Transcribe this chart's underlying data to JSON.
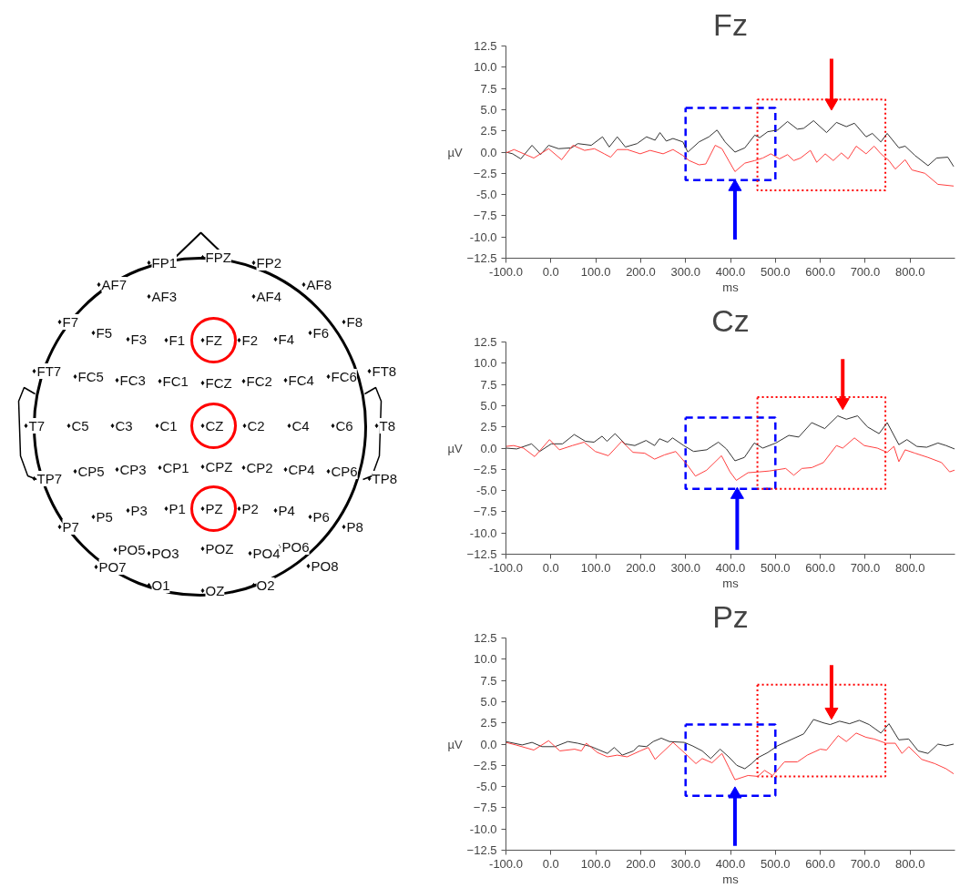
{
  "chart_data": [
    {
      "type": "other",
      "annotations": [
        "FP1",
        "FPZ",
        "FP2",
        "AF7",
        "AF3",
        "AF4",
        "AF8",
        "F7",
        "F5",
        "F3",
        "F1",
        "FZ",
        "F2",
        "F4",
        "F6",
        "F8",
        "FT7",
        "FC5",
        "FC3",
        "FC1",
        "FCZ",
        "FC2",
        "FC4",
        "FC6",
        "FT8",
        "T7",
        "C5",
        "C3",
        "C1",
        "CZ",
        "C2",
        "C4",
        "C6",
        "T8",
        "TP7",
        "CP5",
        "CP3",
        "CP1",
        "CPZ",
        "CP2",
        "CP4",
        "CP6",
        "TP8",
        "P7",
        "P5",
        "P3",
        "P1",
        "PZ",
        "P2",
        "P4",
        "P6",
        "P8",
        "PO7",
        "PO5",
        "PO3",
        "POZ",
        "PO4",
        "PO6",
        "PO8",
        "O1",
        "OZ",
        "O2"
      ]
    },
    {
      "type": "line",
      "title": "Fz",
      "xlabel": "ms",
      "ylabel": "µV",
      "grid": false,
      "xlim": [
        -100,
        900
      ],
      "ylim": [
        -12.5,
        12.5
      ],
      "xticks": [
        {
          "value": -100,
          "label": "-100.0"
        },
        {
          "value": 0,
          "label": "0.0"
        },
        {
          "value": 100,
          "label": "100.0"
        },
        {
          "value": 200,
          "label": "200.0"
        },
        {
          "value": 300,
          "label": "300.0"
        },
        {
          "value": 400,
          "label": "400.0"
        },
        {
          "value": 500,
          "label": "500.0"
        },
        {
          "value": 600,
          "label": "600.0"
        },
        {
          "value": 700,
          "label": "700.0"
        },
        {
          "value": 800,
          "label": "800.0"
        }
      ],
      "yticks": [
        12.5,
        {
          "value": 10,
          "label": "10.0"
        },
        7.5,
        {
          "value": 5,
          "label": "5.0"
        },
        2.5,
        {
          "value": 0,
          "label": "0.0"
        },
        -2.5,
        {
          "value": -5,
          "label": "-5.0"
        },
        -7.5,
        {
          "value": -10,
          "label": "-10.0"
        },
        -12.5
      ],
      "series": [
        {
          "color": "#333333",
          "x": [
            -100,
            -85,
            -67,
            -42,
            -23,
            -5,
            17,
            46,
            60,
            90,
            115,
            130,
            148,
            166,
            192,
            213,
            232,
            243,
            257,
            272,
            294,
            305,
            330,
            352,
            370,
            388,
            410,
            432,
            454,
            465,
            483,
            505,
            527,
            549,
            563,
            585,
            614,
            636,
            658,
            676,
            702,
            716,
            735,
            749,
            775,
            789,
            811,
            840,
            859,
            884,
            897
          ],
          "values": [
            0.0,
            -0.2,
            -0.8,
            0.8,
            -0.3,
            0.8,
            0.4,
            0.5,
            1.0,
            0.8,
            1.8,
            0.6,
            1.8,
            0.6,
            1.0,
            1.8,
            1.4,
            2.3,
            1.3,
            1.6,
            1.2,
            0.0,
            1.2,
            1.8,
            2.6,
            1.2,
            0.0,
            0.5,
            2.0,
            1.7,
            2.4,
            2.6,
            3.6,
            2.7,
            2.8,
            3.7,
            2.3,
            3.5,
            3.0,
            3.4,
            1.8,
            2.2,
            1.2,
            2.2,
            0.5,
            0.7,
            -0.4,
            -1.6,
            -0.7,
            -0.6,
            -1.7
          ]
        },
        {
          "color": "#ff4040",
          "x": [
            -100,
            -82,
            -56,
            -38,
            -5,
            24,
            49,
            75,
            97,
            119,
            133,
            148,
            170,
            199,
            221,
            250,
            272,
            294,
            308,
            330,
            345,
            366,
            381,
            396,
            410,
            432,
            454,
            472,
            490,
            509,
            527,
            541,
            556,
            578,
            592,
            611,
            629,
            647,
            662,
            680,
            702,
            720,
            735,
            753,
            767,
            789,
            804,
            833,
            862,
            897
          ],
          "values": [
            -0.1,
            0.3,
            -0.3,
            -0.7,
            0.4,
            -0.9,
            0.8,
            0.2,
            0.4,
            -0.2,
            -0.6,
            0.3,
            0.3,
            -0.2,
            0.2,
            -0.2,
            0.3,
            -0.4,
            -1.0,
            -1.5,
            -1.4,
            0.8,
            0.4,
            -1.0,
            -2.3,
            -1.3,
            -1.0,
            -0.7,
            -0.2,
            -0.8,
            -0.3,
            -1.0,
            -0.7,
            0.2,
            -1.2,
            -0.2,
            -1.0,
            -0.1,
            -0.8,
            0.7,
            -0.2,
            0.7,
            -0.2,
            -1.0,
            -2.0,
            -0.9,
            -2.1,
            -2.5,
            -3.8,
            -4.0
          ]
        }
      ]
    },
    {
      "type": "line",
      "title": "Cz",
      "xlabel": "ms",
      "ylabel": "µV",
      "grid": false,
      "xlim": [
        -100,
        900
      ],
      "ylim": [
        -12.5,
        12.5
      ],
      "xticks": [
        {
          "value": -100,
          "label": "-100.0"
        },
        {
          "value": 0,
          "label": "0.0"
        },
        {
          "value": 100,
          "label": "100.0"
        },
        {
          "value": 200,
          "label": "200.0"
        },
        {
          "value": 300,
          "label": "300.0"
        },
        {
          "value": 400,
          "label": "400.0"
        },
        {
          "value": 500,
          "label": "500.0"
        },
        {
          "value": 600,
          "label": "600.0"
        },
        {
          "value": 700,
          "label": "700.0"
        },
        {
          "value": 800,
          "label": "800.0"
        }
      ],
      "yticks": [
        12.5,
        {
          "value": 10,
          "label": "10.0"
        },
        7.5,
        {
          "value": 5,
          "label": "5.0"
        },
        2.5,
        {
          "value": 0,
          "label": "0.0"
        },
        -2.5,
        {
          "value": -5,
          "label": "-5.0"
        },
        -7.5,
        {
          "value": -10,
          "label": "-10.0"
        },
        -12.5
      ],
      "series": [
        {
          "color": "#333333",
          "x": [
            -100,
            -76,
            -43,
            -25,
            1,
            26,
            52,
            77,
            96,
            114,
            125,
            143,
            165,
            187,
            212,
            231,
            242,
            260,
            271,
            296,
            318,
            347,
            373,
            391,
            410,
            431,
            453,
            472,
            501,
            530,
            552,
            581,
            610,
            639,
            658,
            683,
            705,
            731,
            749,
            775,
            793,
            815,
            837,
            862,
            880,
            899
          ],
          "values": [
            0.0,
            -0.1,
            0.5,
            -0.4,
            0.5,
            0.5,
            1.6,
            0.8,
            0.7,
            1.4,
            0.8,
            1.7,
            0.5,
            0.3,
            0.9,
            0.3,
            1.1,
            0.7,
            1.2,
            0.3,
            -0.4,
            -0.2,
            0.7,
            -0.1,
            -1.5,
            -1.1,
            0.6,
            0.0,
            0.6,
            1.5,
            1.3,
            3.0,
            2.3,
            3.8,
            3.4,
            3.8,
            2.5,
            1.7,
            3.0,
            0.4,
            1.0,
            0.2,
            0.1,
            0.6,
            0.3,
            -0.1
          ]
        },
        {
          "color": "#ff4040",
          "x": [
            -100,
            -83,
            -61,
            -36,
            -3,
            19,
            48,
            74,
            99,
            128,
            158,
            183,
            209,
            231,
            253,
            278,
            304,
            322,
            347,
            380,
            399,
            413,
            439,
            464,
            486,
            523,
            541,
            559,
            581,
            607,
            636,
            650,
            676,
            698,
            727,
            749,
            764,
            775,
            789,
            811,
            840,
            870,
            888,
            899
          ],
          "values": [
            0.2,
            0.3,
            0.0,
            -1.0,
            1.0,
            -0.2,
            0.3,
            0.7,
            -0.4,
            -0.9,
            0.8,
            -0.5,
            -0.6,
            -1.3,
            -0.8,
            -0.4,
            -2.0,
            -3.3,
            -2.6,
            -0.9,
            -2.8,
            -3.8,
            -2.9,
            -2.8,
            -2.7,
            -2.4,
            -3.2,
            -2.4,
            -2.3,
            -1.7,
            0.3,
            0.0,
            1.2,
            0.3,
            0.0,
            -0.5,
            0.2,
            -1.6,
            -0.2,
            -0.6,
            -1.1,
            -1.7,
            -2.8,
            -2.6
          ]
        }
      ]
    },
    {
      "type": "line",
      "title": "Pz",
      "xlabel": "ms",
      "ylabel": "µV",
      "grid": false,
      "xlim": [
        -100,
        900
      ],
      "ylim": [
        -12.5,
        12.5
      ],
      "xticks": [
        {
          "value": -100,
          "label": "-100.0"
        },
        {
          "value": 0,
          "label": "0.0"
        },
        {
          "value": 100,
          "label": "100.0"
        },
        {
          "value": 200,
          "label": "200.0"
        },
        {
          "value": 300,
          "label": "300.0"
        },
        {
          "value": 400,
          "label": "400.0"
        },
        {
          "value": 500,
          "label": "500.0"
        },
        {
          "value": 600,
          "label": "600.0"
        },
        {
          "value": 700,
          "label": "700.0"
        },
        {
          "value": 800,
          "label": "800.0"
        }
      ],
      "yticks": [
        12.5,
        {
          "value": 10,
          "label": "10.0"
        },
        7.5,
        {
          "value": 5,
          "label": "5.0"
        },
        2.5,
        {
          "value": 0,
          "label": "0.0"
        },
        -2.5,
        {
          "value": -5,
          "label": "-5.0"
        },
        -7.5,
        {
          "value": -10,
          "label": "-10.0"
        },
        -12.5
      ],
      "series": [
        {
          "color": "#333333",
          "x": [
            -100,
            -64,
            -42,
            -20,
            9,
            38,
            60,
            90,
            126,
            141,
            159,
            184,
            195,
            213,
            228,
            246,
            264,
            297,
            315,
            337,
            356,
            377,
            396,
            414,
            432,
            447,
            461,
            483,
            505,
            534,
            563,
            585,
            607,
            622,
            643,
            665,
            687,
            709,
            735,
            753,
            775,
            797,
            818,
            840,
            862,
            880,
            897
          ],
          "values": [
            0.3,
            -0.1,
            0.2,
            -0.3,
            -0.3,
            0.3,
            0.1,
            -0.3,
            -1.1,
            -0.4,
            -1.3,
            -0.8,
            -0.2,
            -0.3,
            0.3,
            0.7,
            0.3,
            0.2,
            -0.2,
            -0.8,
            -1.7,
            -0.6,
            -1.5,
            -2.5,
            -2.9,
            -2.3,
            -1.6,
            -1.0,
            -0.2,
            0.5,
            1.2,
            2.9,
            2.5,
            2.3,
            2.7,
            2.4,
            2.8,
            2.3,
            1.3,
            2.4,
            0.5,
            0.6,
            -0.8,
            -1.1,
            0.0,
            -0.2,
            0.0
          ]
        },
        {
          "color": "#ff4040",
          "x": [
            -100,
            -78,
            -38,
            -5,
            20,
            53,
            68,
            79,
            104,
            126,
            148,
            170,
            199,
            217,
            232,
            250,
            272,
            297,
            323,
            337,
            359,
            381,
            396,
            410,
            439,
            461,
            476,
            494,
            520,
            549,
            571,
            600,
            614,
            640,
            658,
            680,
            702,
            720,
            746,
            767,
            782,
            797,
            826,
            855,
            880,
            897
          ],
          "values": [
            0.2,
            -0.1,
            -0.7,
            0.4,
            -0.8,
            -0.6,
            -0.8,
            0.1,
            -1.0,
            -1.5,
            -1.3,
            -1.5,
            -0.8,
            -0.4,
            -1.8,
            -0.9,
            0.2,
            -1.0,
            -2.3,
            -1.7,
            -2.2,
            -1.1,
            -2.7,
            -4.2,
            -3.7,
            -3.8,
            -3.1,
            -3.7,
            -2.1,
            -2.1,
            -1.3,
            -0.6,
            -0.7,
            1.0,
            0.3,
            1.3,
            0.8,
            0.6,
            0.1,
            0.1,
            -1.1,
            -0.3,
            -1.8,
            -2.3,
            -2.9,
            -3.5
          ]
        }
      ]
    }
  ]
}
